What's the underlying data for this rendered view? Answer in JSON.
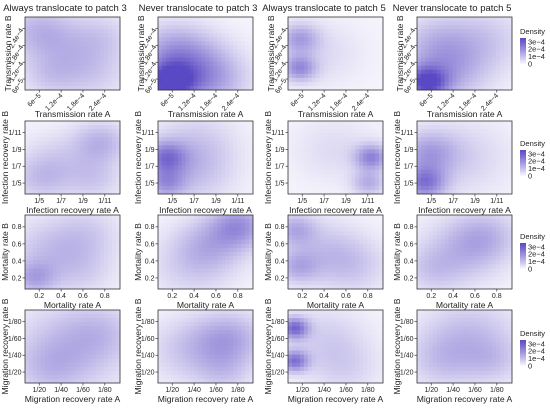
{
  "chart_data": {
    "type": "heatmap",
    "grid": false,
    "legend_placement": "right",
    "color_low": "#ffffff",
    "color_high": "#5a49c4",
    "column_titles": [
      "Always translocate to patch 3",
      "Never translocate to patch 3",
      "Always translocate to patch 5",
      "Never translocate to patch 5"
    ],
    "rows": [
      {
        "xlabel": "Transmission rate A",
        "ylabel": "Transmission rate B",
        "xticks": [
          "6e−5",
          "1.2e−4",
          "1.8e−4",
          "2.4e−4"
        ],
        "yticks": [
          "6e−5",
          "1.2e−4",
          "1.8e−4",
          "2.4e−4"
        ],
        "x_tick_angle": -45,
        "y_tick_angle": -60,
        "legend_title": "Density",
        "legend_ticks": [
          "3e−4",
          "2e−4",
          "1e−4",
          "0"
        ]
      },
      {
        "xlabel": "Infection recovery rate A",
        "ylabel": "Infection recovery rate B",
        "xticks": [
          "1/5",
          "1/7",
          "1/9",
          "1/11"
        ],
        "yticks": [
          "1/5",
          "1/7",
          "1/9",
          "1/11"
        ],
        "x_tick_angle": 0,
        "y_tick_angle": 0,
        "legend_title": "Density",
        "legend_ticks": [
          "3e−4",
          "2e−4",
          "1e−4",
          "0"
        ]
      },
      {
        "xlabel": "Mortality rate A",
        "ylabel": "Mortality rate B",
        "xticks": [
          "0.2",
          "0.4",
          "0.6",
          "0.8"
        ],
        "yticks": [
          "0.2",
          "0.4",
          "0.6",
          "0.8"
        ],
        "x_tick_angle": 0,
        "y_tick_angle": 0,
        "legend_title": "Density",
        "legend_ticks": [
          "3e−4",
          "2e−4",
          "1e−4",
          "0"
        ]
      },
      {
        "xlabel": "Migration recovery rate A",
        "ylabel": "Migration recovery rate B",
        "xticks": [
          "1/20",
          "1/40",
          "1/60",
          "1/80"
        ],
        "yticks": [
          "1/20",
          "1/40",
          "1/60",
          "1/80"
        ],
        "x_tick_angle": 0,
        "y_tick_angle": 0,
        "legend_title": "Density",
        "legend_ticks": [
          "3e−4",
          "2e−4",
          "1e−4",
          "0"
        ]
      }
    ],
    "density_range": [
      0,
      0.00035
    ],
    "panels": [
      [
        [
          [
            0.14,
            0.82,
            9e-05,
            0.24
          ],
          [
            0.42,
            0.55,
            7e-05,
            0.3
          ],
          [
            0.7,
            0.25,
            6e-05,
            0.28
          ],
          [
            0.25,
            0.18,
            5e-05,
            0.2
          ],
          [
            0.82,
            0.75,
            5e-05,
            0.22
          ]
        ],
        [
          [
            0.12,
            0.1,
            0.00033,
            0.18
          ],
          [
            0.35,
            0.3,
            0.00015,
            0.3
          ],
          [
            0.15,
            0.55,
            0.0001,
            0.25
          ],
          [
            0.6,
            0.12,
            8e-05,
            0.25
          ]
        ],
        [
          [
            0.12,
            0.3,
            0.00018,
            0.12
          ],
          [
            0.12,
            0.7,
            0.00014,
            0.14
          ],
          [
            0.35,
            0.5,
            4e-05,
            0.3
          ]
        ],
        [
          [
            0.1,
            0.1,
            0.0003,
            0.15
          ],
          [
            0.3,
            0.3,
            0.00014,
            0.3
          ],
          [
            0.7,
            0.7,
            7e-05,
            0.3
          ],
          [
            0.2,
            0.7,
            6e-05,
            0.25
          ]
        ]
      ],
      [
        [
          [
            0.8,
            0.7,
            0.00011,
            0.2
          ],
          [
            0.35,
            0.4,
            7e-05,
            0.28
          ],
          [
            0.15,
            0.2,
            6e-05,
            0.2
          ],
          [
            0.75,
            0.2,
            6e-05,
            0.2
          ]
        ],
        [
          [
            0.08,
            0.5,
            0.0002,
            0.15
          ],
          [
            0.08,
            0.15,
            0.00014,
            0.14
          ],
          [
            0.35,
            0.3,
            8e-05,
            0.3
          ],
          [
            0.4,
            0.7,
            6e-05,
            0.3
          ]
        ],
        [
          [
            0.88,
            0.5,
            0.0002,
            0.12
          ],
          [
            0.85,
            0.15,
            0.00012,
            0.12
          ],
          [
            0.5,
            0.6,
            4e-05,
            0.3
          ]
        ],
        [
          [
            0.08,
            0.15,
            0.00022,
            0.15
          ],
          [
            0.12,
            0.55,
            0.00013,
            0.2
          ],
          [
            0.45,
            0.5,
            6e-05,
            0.35
          ]
        ]
      ],
      [
        [
          [
            0.1,
            0.15,
            0.00012,
            0.15
          ],
          [
            0.25,
            0.5,
            8e-05,
            0.3
          ],
          [
            0.65,
            0.75,
            6e-05,
            0.25
          ],
          [
            0.6,
            0.25,
            5e-05,
            0.25
          ]
        ],
        [
          [
            0.85,
            0.85,
            0.00017,
            0.2
          ],
          [
            0.55,
            0.6,
            0.0001,
            0.25
          ],
          [
            0.35,
            0.3,
            6e-05,
            0.3
          ]
        ],
        [
          [
            0.08,
            0.8,
            0.00012,
            0.15
          ],
          [
            0.1,
            0.3,
            0.00011,
            0.15
          ],
          [
            0.4,
            0.5,
            8e-05,
            0.28
          ],
          [
            0.7,
            0.3,
            6e-05,
            0.25
          ]
        ],
        [
          [
            0.7,
            0.7,
            0.00011,
            0.25
          ],
          [
            0.4,
            0.45,
            8e-05,
            0.3
          ],
          [
            0.15,
            0.25,
            5e-05,
            0.2
          ]
        ]
      ],
      [
        [
          [
            0.5,
            0.5,
            0.0001,
            0.4
          ],
          [
            0.25,
            0.2,
            6e-05,
            0.25
          ],
          [
            0.8,
            0.7,
            5e-05,
            0.25
          ]
        ],
        [
          [
            0.75,
            0.6,
            0.00013,
            0.25
          ],
          [
            0.35,
            0.45,
            8e-05,
            0.3
          ],
          [
            0.7,
            0.15,
            6e-05,
            0.2
          ]
        ],
        [
          [
            0.07,
            0.75,
            0.00025,
            0.1
          ],
          [
            0.07,
            0.3,
            0.00023,
            0.1
          ],
          [
            0.4,
            0.6,
            6e-05,
            0.3
          ],
          [
            0.6,
            0.2,
            5e-05,
            0.25
          ]
        ],
        [
          [
            0.55,
            0.6,
            0.0001,
            0.35
          ],
          [
            0.25,
            0.3,
            6e-05,
            0.25
          ],
          [
            0.8,
            0.3,
            5e-05,
            0.2
          ]
        ]
      ]
    ]
  }
}
